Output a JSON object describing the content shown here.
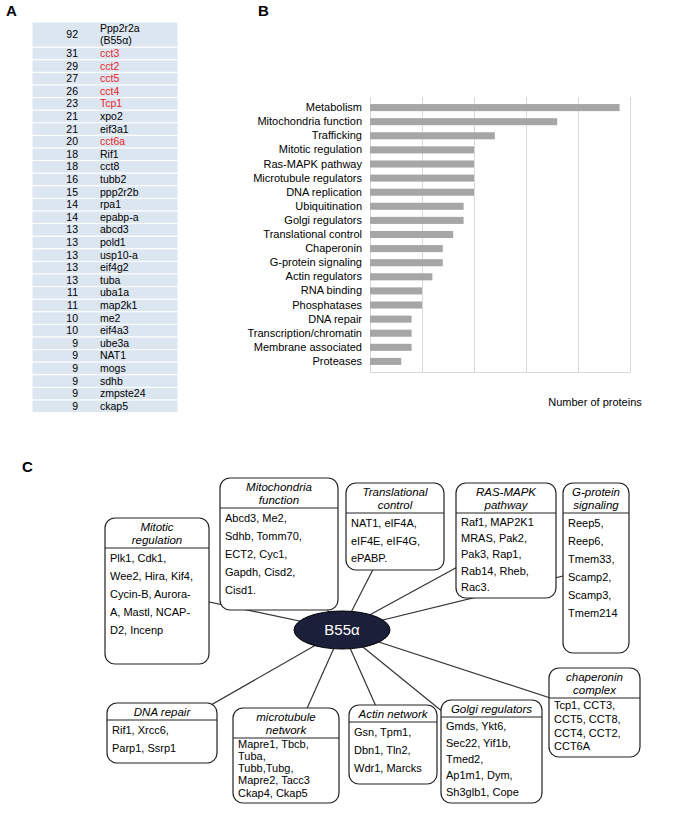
{
  "panel_labels": [
    "A",
    "B",
    "C"
  ],
  "table": {
    "rows": [
      {
        "count": 92,
        "name": "Ppp2r2a (B55α)"
      },
      {
        "count": 31,
        "name": "cct3",
        "color": "#e8251f"
      },
      {
        "count": 29,
        "name": "cct2",
        "color": "#e8251f"
      },
      {
        "count": 27,
        "name": "cct5",
        "color": "#e8251f"
      },
      {
        "count": 26,
        "name": "cct4",
        "color": "#e8251f"
      },
      {
        "count": 23,
        "name": "Tcp1",
        "color": "#e8251f"
      },
      {
        "count": 21,
        "name": "xpo2"
      },
      {
        "count": 21,
        "name": "eif3a1"
      },
      {
        "count": 20,
        "name": "cct6a",
        "color": "#e8251f"
      },
      {
        "count": 18,
        "name": "Rif1"
      },
      {
        "count": 18,
        "name": "cct8"
      },
      {
        "count": 16,
        "name": "tubb2"
      },
      {
        "count": 15,
        "name": "ppp2r2b"
      },
      {
        "count": 14,
        "name": "rpa1"
      },
      {
        "count": 14,
        "name": "epabp-a"
      },
      {
        "count": 13,
        "name": "abcd3"
      },
      {
        "count": 13,
        "name": "pold1"
      },
      {
        "count": 13,
        "name": "usp10-a"
      },
      {
        "count": 13,
        "name": "eif4g2"
      },
      {
        "count": 13,
        "name": "tuba"
      },
      {
        "count": 11,
        "name": "uba1a"
      },
      {
        "count": 11,
        "name": "map2k1"
      },
      {
        "count": 10,
        "name": "me2"
      },
      {
        "count": 10,
        "name": "eif4a3"
      },
      {
        "count": 9,
        "name": "ube3a"
      },
      {
        "count": 9,
        "name": "NAT1"
      },
      {
        "count": 9,
        "name": "mogs"
      },
      {
        "count": 9,
        "name": "sdhb"
      },
      {
        "count": 9,
        "name": "zmpste24"
      },
      {
        "count": 9,
        "name": "ckap5"
      }
    ]
  },
  "chart_data": {
    "type": "bar",
    "orientation": "horizontal",
    "categories": [
      "Metabolism",
      "Mitochondria function",
      "Trafficking",
      "Mitotic regulation",
      "Ras-MAPK pathway",
      "Microtubule regulators",
      "DNA replication",
      "Ubiquitination",
      "Golgi regulators",
      "Translational control",
      "Chaperonin",
      "G-protein signaling",
      "Actin regulators",
      "RNA binding",
      "Phosphatases",
      "DNA repair",
      "Transcription/chromatin",
      "Membrane associated",
      "Proteases"
    ],
    "values": [
      24,
      18,
      12,
      10,
      10,
      10,
      10,
      9,
      9,
      8,
      7,
      7,
      6,
      5,
      5,
      4,
      4,
      4,
      3
    ],
    "color": "#a6a6a6",
    "xlabel": "Number of proteins",
    "xlim": [
      0,
      25
    ],
    "xticks": [
      0,
      5,
      10,
      15,
      20,
      25
    ],
    "grid": true,
    "tick_labels": "y"
  },
  "diagram": {
    "center": "B55α",
    "boxes": [
      {
        "title": [
          "Mitotic",
          "regulation"
        ],
        "lines": [
          "Plk1, Cdk1,",
          "Wee2, Hira, Kif4,",
          "Cycin-B, Aurora-",
          "A, Mastl, NCAP-",
          "D2, Incenp"
        ]
      },
      {
        "title": [
          "Mitochondria",
          "function"
        ],
        "lines": [
          "Abcd3, Me2,",
          "Sdhb, Tomm70,",
          "ECT2, Cyc1,",
          "Gapdh, Cisd2,",
          "Cisd1."
        ]
      },
      {
        "title": [
          "Translational",
          "control"
        ],
        "lines": [
          "NAT1, eIF4A,",
          "eIF4E, eIF4G,",
          "ePABP."
        ]
      },
      {
        "title": [
          "RAS-MAPK",
          "pathway"
        ],
        "lines": [
          "Raf1, MAP2K1",
          "MRAS, Pak2,",
          "Pak3, Rap1,",
          "Rab14, Rheb,",
          "Rac3."
        ]
      },
      {
        "title": [
          "G-protein",
          "signaling"
        ],
        "lines": [
          "Reep5,",
          "Reep6,",
          "Tmem33,",
          "Scamp2,",
          "Scamp3,",
          "Tmem214"
        ]
      },
      {
        "title": [
          "DNA repair"
        ],
        "lines": [
          "Rif1, Xrcc6,",
          "Parp1, Ssrp1"
        ]
      },
      {
        "title": [
          "microtubule",
          "network"
        ],
        "lines": [
          "Mapre1, Tbcb,",
          "Tuba,",
          "Tubb,Tubg,",
          "Mapre2, Tacc3",
          "Ckap4, Ckap5"
        ]
      },
      {
        "title": [
          "Actin network"
        ],
        "lines": [
          "Gsn, Tpm1,",
          "Dbn1, Tln2,",
          "Wdr1, Marcks"
        ]
      },
      {
        "title": [
          "Golgi regulators"
        ],
        "lines": [
          "Gmds, Ykt6,",
          "Sec22, Yif1b,",
          "Tmed2,",
          "Ap1m1, Dym,",
          "Sh3glb1, Cope"
        ]
      },
      {
        "title": [
          "chaperonin",
          "complex"
        ],
        "lines": [
          "Tcp1, CCT3,",
          "CCT5, CCT8,",
          "CCT4, CCT2,",
          "CCT6A"
        ]
      }
    ]
  }
}
